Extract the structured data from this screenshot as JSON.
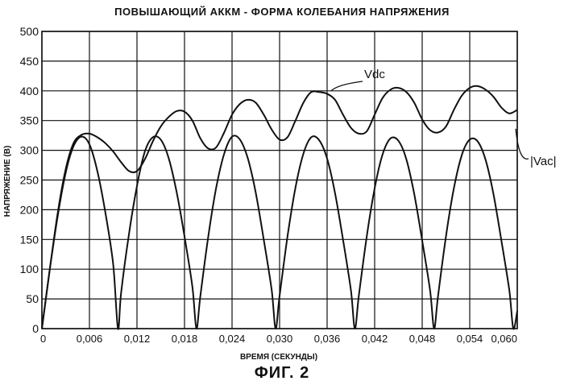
{
  "figure": {
    "label": "ФИГ. 2"
  },
  "chart_data": {
    "type": "line",
    "title": "ПОВЫШАЮЩИЙ АККМ - ФОРМА КОЛЕБАНИЯ НАПРЯЖЕНИЯ",
    "xlabel": "ВРЕМЯ (СЕКУНДЫ)",
    "ylabel": "НАПРЯЖЕНИЕ (В)",
    "xlim": [
      0,
      0.06
    ],
    "ylim": [
      0,
      500
    ],
    "grid": true,
    "x_ticks": [
      "0",
      "0,006",
      "0,012",
      "0,018",
      "0,024",
      "0,030",
      "0,036",
      "0,042",
      "0,048",
      "0,054",
      "0,060"
    ],
    "y_ticks": [
      "0",
      "50",
      "100",
      "150",
      "200",
      "250",
      "300",
      "350",
      "400",
      "450",
      "500"
    ],
    "series": [
      {
        "name": "Vdc",
        "x": [
          0,
          0.001,
          0.002,
          0.003,
          0.004,
          0.005,
          0.006,
          0.007,
          0.008,
          0.009,
          0.01,
          0.011,
          0.012,
          0.013,
          0.014,
          0.015,
          0.016,
          0.017,
          0.018,
          0.019,
          0.02,
          0.021,
          0.022,
          0.023,
          0.024,
          0.025,
          0.026,
          0.027,
          0.028,
          0.029,
          0.03,
          0.031,
          0.032,
          0.033,
          0.034,
          0.035,
          0.036,
          0.037,
          0.038,
          0.039,
          0.04,
          0.041,
          0.042,
          0.043,
          0.044,
          0.045,
          0.046,
          0.047,
          0.048,
          0.049,
          0.05,
          0.051,
          0.052,
          0.053,
          0.054,
          0.055,
          0.056,
          0.057,
          0.058,
          0.059,
          0.06
        ],
        "values": [
          0,
          100,
          195,
          268,
          312,
          326,
          328,
          322,
          312,
          298,
          280,
          265,
          265,
          285,
          315,
          340,
          356,
          366,
          365,
          350,
          320,
          303,
          305,
          330,
          360,
          378,
          385,
          380,
          360,
          335,
          318,
          322,
          350,
          380,
          398,
          398,
          395,
          385,
          360,
          338,
          328,
          332,
          360,
          388,
          402,
          405,
          398,
          380,
          352,
          334,
          330,
          340,
          368,
          392,
          405,
          408,
          402,
          390,
          372,
          362,
          368
        ]
      },
      {
        "name": "|Vac|",
        "x": [
          0,
          0.001,
          0.002,
          0.003,
          0.004,
          0.005,
          0.006,
          0.007,
          0.008,
          0.009,
          0.0096,
          0.01,
          0.011,
          0.012,
          0.013,
          0.014,
          0.015,
          0.016,
          0.017,
          0.018,
          0.019,
          0.0195,
          0.02,
          0.021,
          0.022,
          0.023,
          0.024,
          0.025,
          0.026,
          0.027,
          0.028,
          0.029,
          0.0295,
          0.03,
          0.031,
          0.032,
          0.033,
          0.034,
          0.035,
          0.036,
          0.037,
          0.038,
          0.039,
          0.0395,
          0.04,
          0.041,
          0.042,
          0.043,
          0.044,
          0.045,
          0.046,
          0.047,
          0.048,
          0.049,
          0.0495,
          0.05,
          0.051,
          0.052,
          0.053,
          0.054,
          0.055,
          0.056,
          0.057,
          0.058,
          0.059,
          0.0595,
          0.06
        ],
        "values": [
          0,
          100,
          190,
          262,
          307,
          323,
          310,
          265,
          196,
          108,
          0,
          60,
          160,
          240,
          298,
          322,
          318,
          287,
          230,
          155,
          70,
          0,
          55,
          155,
          237,
          294,
          323,
          318,
          286,
          228,
          150,
          65,
          0,
          55,
          155,
          237,
          294,
          322,
          317,
          286,
          228,
          150,
          65,
          0,
          55,
          155,
          236,
          293,
          320,
          316,
          285,
          226,
          148,
          64,
          0,
          55,
          155,
          236,
          292,
          318,
          315,
          284,
          226,
          148,
          64,
          0,
          30
        ]
      }
    ],
    "annotations": [
      {
        "text": "Vdc",
        "series": "Vdc",
        "at_x": 0.0365,
        "at_y": 400
      },
      {
        "text": "|Vac|",
        "series": "|Vac|",
        "at_x": 0.0598,
        "at_y": 255
      }
    ]
  }
}
